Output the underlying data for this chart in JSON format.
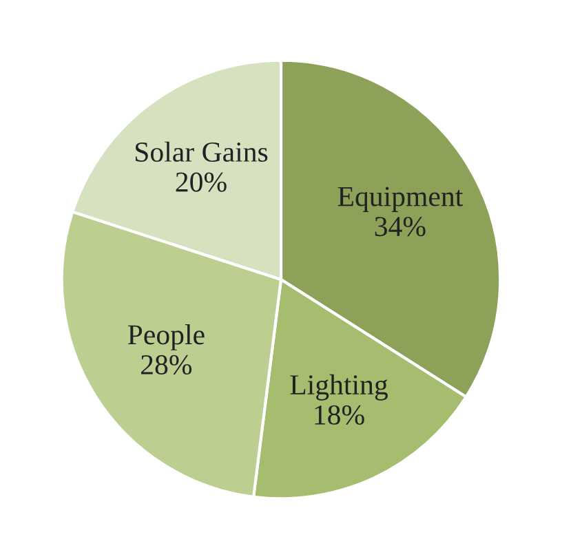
{
  "chart_data": {
    "type": "pie",
    "categories": [
      "Equipment",
      "Lighting",
      "People",
      "Solar Gains"
    ],
    "values": [
      34,
      18,
      28,
      20
    ],
    "colors": [
      "#8da258",
      "#a6bc6e",
      "#bccf91",
      "#d5e1bf"
    ],
    "value_labels": [
      "34%",
      "18%",
      "28%",
      "20%"
    ]
  }
}
